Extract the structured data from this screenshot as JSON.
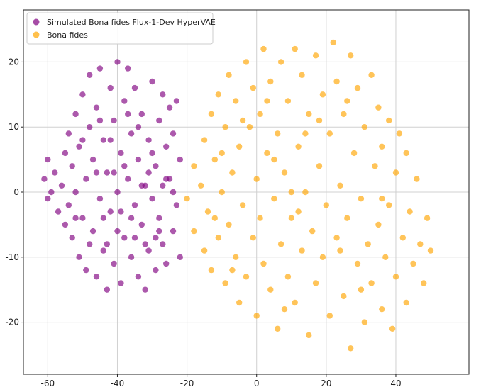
{
  "chart_data": {
    "type": "scatter",
    "xlim": [
      -67,
      61
    ],
    "ylim": [
      -28,
      28
    ],
    "xticks": [
      -60,
      -40,
      -20,
      0,
      20,
      40
    ],
    "yticks": [
      -20,
      -10,
      0,
      10,
      20
    ],
    "xtick_labels": [
      "-60",
      "-40",
      "-20",
      "0",
      "20",
      "40"
    ],
    "ytick_labels": [
      "-20",
      "-10",
      "0",
      "10",
      "20"
    ],
    "grid": true,
    "legend_position": "top-left",
    "series": [
      {
        "name": "Simulated Bona fides Flux-1-Dev HyperVAE",
        "color": "#800080",
        "points": [
          [
            -61,
            2
          ],
          [
            -60,
            5
          ],
          [
            -60,
            -1
          ],
          [
            -59,
            0
          ],
          [
            -58,
            3
          ],
          [
            -57,
            -3
          ],
          [
            -56,
            1
          ],
          [
            -55,
            6
          ],
          [
            -55,
            -5
          ],
          [
            -54,
            9
          ],
          [
            -54,
            -2
          ],
          [
            -53,
            4
          ],
          [
            -53,
            -7
          ],
          [
            -52,
            12
          ],
          [
            -52,
            0
          ],
          [
            -51,
            -10
          ],
          [
            -51,
            7
          ],
          [
            -50,
            15
          ],
          [
            -50,
            -4
          ],
          [
            -49,
            2
          ],
          [
            -49,
            -12
          ],
          [
            -48,
            10
          ],
          [
            -48,
            18
          ],
          [
            -47,
            -6
          ],
          [
            -47,
            5
          ],
          [
            -46,
            -13
          ],
          [
            -46,
            13
          ],
          [
            -45,
            -1
          ],
          [
            -45,
            19
          ],
          [
            -44,
            8
          ],
          [
            -44,
            -9
          ],
          [
            -43,
            3
          ],
          [
            -43,
            -15
          ],
          [
            -42,
            16
          ],
          [
            -42,
            -3
          ],
          [
            -41,
            11
          ],
          [
            -41,
            -11
          ],
          [
            -40,
            20
          ],
          [
            -40,
            0
          ],
          [
            -39,
            6
          ],
          [
            -39,
            -14
          ],
          [
            -38,
            14
          ],
          [
            -38,
            -7
          ],
          [
            -37,
            19
          ],
          [
            -37,
            2
          ],
          [
            -36,
            -10
          ],
          [
            -36,
            9
          ],
          [
            -35,
            -2
          ],
          [
            -35,
            16
          ],
          [
            -34,
            -13
          ],
          [
            -34,
            5
          ],
          [
            -33,
            12
          ],
          [
            -33,
            -5
          ],
          [
            -32,
            -15
          ],
          [
            -32,
            1
          ],
          [
            -31,
            8
          ],
          [
            -31,
            -9
          ],
          [
            -30,
            17
          ],
          [
            -30,
            -1
          ],
          [
            -29,
            4
          ],
          [
            -29,
            -12
          ],
          [
            -28,
            11
          ],
          [
            -28,
            -4
          ],
          [
            -27,
            15
          ],
          [
            -27,
            -8
          ],
          [
            -26,
            7
          ],
          [
            -26,
            -11
          ],
          [
            -25,
            2
          ],
          [
            -25,
            13
          ],
          [
            -24,
            -6
          ],
          [
            -24,
            9
          ],
          [
            -23,
            -2
          ],
          [
            -23,
            14
          ],
          [
            -22,
            -10
          ],
          [
            -22,
            5
          ],
          [
            -52,
            -4
          ],
          [
            -50,
            8
          ],
          [
            -48,
            -8
          ],
          [
            -46,
            3
          ],
          [
            -44,
            -4
          ],
          [
            -42,
            8
          ],
          [
            -40,
            -6
          ],
          [
            -38,
            4
          ],
          [
            -36,
            -4
          ],
          [
            -34,
            10
          ],
          [
            -32,
            -8
          ],
          [
            -30,
            6
          ],
          [
            -28,
            -6
          ],
          [
            -26,
            2
          ],
          [
            -24,
            0
          ],
          [
            -45,
            11
          ],
          [
            -43,
            -8
          ],
          [
            -41,
            3
          ],
          [
            -39,
            -3
          ],
          [
            -37,
            12
          ],
          [
            -35,
            -7
          ],
          [
            -33,
            1
          ],
          [
            -31,
            3
          ],
          [
            -29,
            -7
          ],
          [
            -27,
            1
          ]
        ]
      },
      {
        "name": "Bona fides",
        "color": "#FFA500",
        "points": [
          [
            -20,
            -1
          ],
          [
            -18,
            4
          ],
          [
            -18,
            -6
          ],
          [
            -16,
            1
          ],
          [
            -15,
            -9
          ],
          [
            -15,
            8
          ],
          [
            -14,
            -3
          ],
          [
            -13,
            12
          ],
          [
            -13,
            -12
          ],
          [
            -12,
            5
          ],
          [
            -11,
            -7
          ],
          [
            -11,
            15
          ],
          [
            -10,
            0
          ],
          [
            -9,
            -14
          ],
          [
            -9,
            10
          ],
          [
            -8,
            18
          ],
          [
            -8,
            -5
          ],
          [
            -7,
            3
          ],
          [
            -6,
            -10
          ],
          [
            -6,
            14
          ],
          [
            -5,
            -17
          ],
          [
            -5,
            7
          ],
          [
            -4,
            -2
          ],
          [
            -3,
            20
          ],
          [
            -3,
            -13
          ],
          [
            -2,
            10
          ],
          [
            -1,
            -7
          ],
          [
            -1,
            16
          ],
          [
            0,
            2
          ],
          [
            0,
            -19
          ],
          [
            1,
            -4
          ],
          [
            1,
            12
          ],
          [
            2,
            22
          ],
          [
            2,
            -11
          ],
          [
            3,
            6
          ],
          [
            4,
            -15
          ],
          [
            4,
            17
          ],
          [
            5,
            -1
          ],
          [
            6,
            9
          ],
          [
            6,
            -21
          ],
          [
            7,
            -8
          ],
          [
            7,
            20
          ],
          [
            8,
            3
          ],
          [
            9,
            -13
          ],
          [
            9,
            14
          ],
          [
            10,
            -4
          ],
          [
            11,
            22
          ],
          [
            11,
            -17
          ],
          [
            12,
            7
          ],
          [
            13,
            -9
          ],
          [
            13,
            18
          ],
          [
            14,
            0
          ],
          [
            15,
            -22
          ],
          [
            15,
            12
          ],
          [
            16,
            -6
          ],
          [
            17,
            21
          ],
          [
            17,
            -14
          ],
          [
            18,
            4
          ],
          [
            19,
            -10
          ],
          [
            19,
            15
          ],
          [
            20,
            -2
          ],
          [
            21,
            -19
          ],
          [
            21,
            9
          ],
          [
            22,
            23
          ],
          [
            23,
            -7
          ],
          [
            23,
            17
          ],
          [
            24,
            1
          ],
          [
            25,
            -16
          ],
          [
            25,
            12
          ],
          [
            26,
            -4
          ],
          [
            27,
            21
          ],
          [
            27,
            -24
          ],
          [
            28,
            6
          ],
          [
            29,
            -11
          ],
          [
            29,
            16
          ],
          [
            30,
            -1
          ],
          [
            31,
            -20
          ],
          [
            31,
            10
          ],
          [
            32,
            -8
          ],
          [
            33,
            18
          ],
          [
            33,
            -14
          ],
          [
            34,
            4
          ],
          [
            35,
            -5
          ],
          [
            35,
            13
          ],
          [
            36,
            -18
          ],
          [
            36,
            7
          ],
          [
            37,
            -10
          ],
          [
            38,
            11
          ],
          [
            38,
            -2
          ],
          [
            39,
            -21
          ],
          [
            40,
            3
          ],
          [
            40,
            -13
          ],
          [
            41,
            9
          ],
          [
            42,
            -7
          ],
          [
            43,
            -17
          ],
          [
            43,
            6
          ],
          [
            44,
            -3
          ],
          [
            45,
            -11
          ],
          [
            46,
            2
          ],
          [
            47,
            -8
          ],
          [
            48,
            -14
          ],
          [
            49,
            -4
          ],
          [
            50,
            -9
          ],
          [
            5,
            5
          ],
          [
            -10,
            6
          ],
          [
            12,
            -3
          ],
          [
            24,
            -9
          ],
          [
            -4,
            11
          ],
          [
            18,
            11
          ],
          [
            30,
            -15
          ],
          [
            8,
            -18
          ],
          [
            -12,
            -4
          ],
          [
            36,
            -1
          ],
          [
            3,
            14
          ],
          [
            14,
            9
          ],
          [
            26,
            14
          ],
          [
            -7,
            -12
          ],
          [
            10,
            0
          ]
        ]
      }
    ]
  }
}
